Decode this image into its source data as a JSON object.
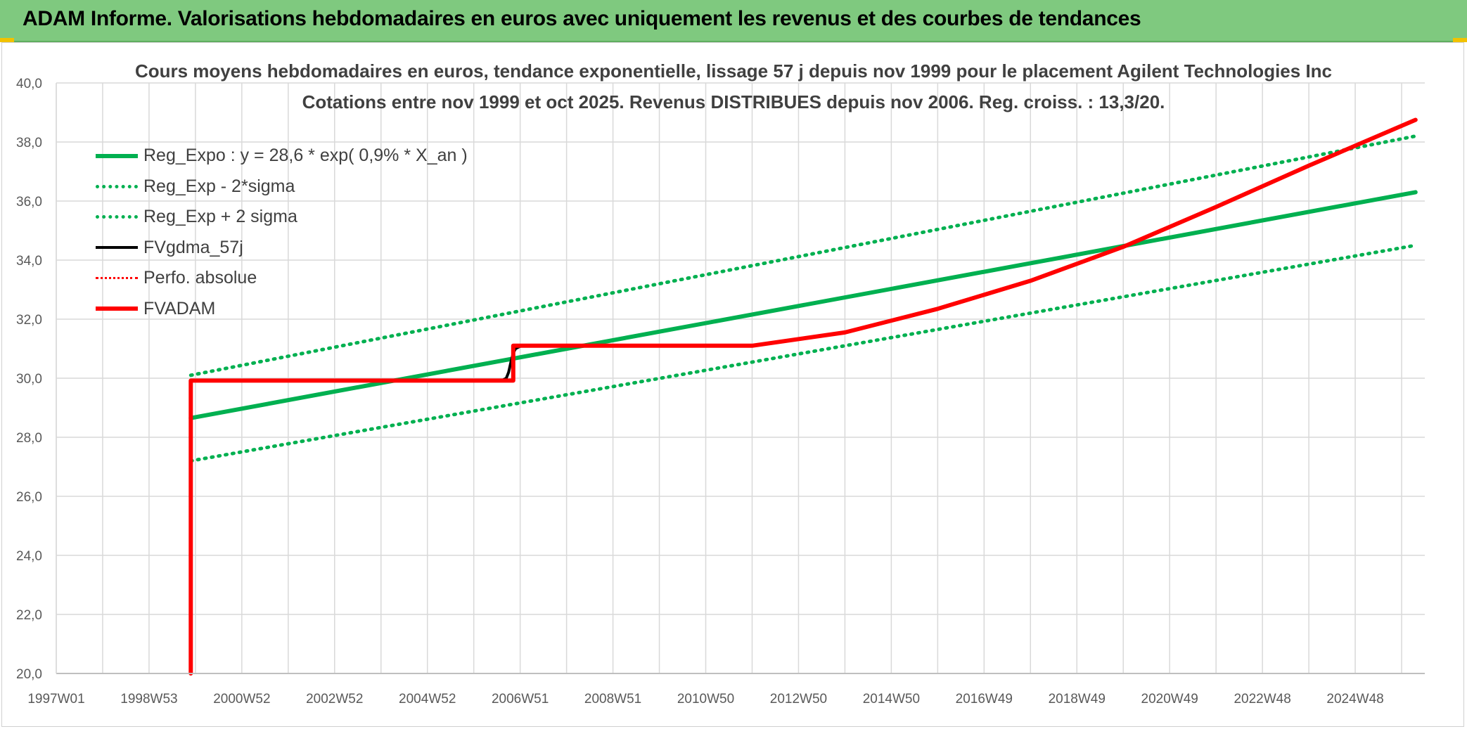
{
  "banner": {
    "title": "ADAM Informe. Valorisations hebdomadaires en euros avec uniquement les revenus et des courbes de tendances"
  },
  "chart_data": {
    "type": "line",
    "title_line1": "Cours moyens hebdomadaires en euros, tendance exponentielle, lissage 57 j depuis nov 1999 pour le placement Agilent Technologies Inc",
    "title_line2": "Cotations entre nov 1999 et oct 2025. Revenus DISTRIBUES depuis nov 2006. Reg. croiss. : 13,3/20.",
    "xlabel": "",
    "ylabel": "",
    "ylim": [
      20.0,
      40.0
    ],
    "xlim": [
      1997.0,
      2026.5
    ],
    "y_ticks": [
      "20,0",
      "22,0",
      "24,0",
      "26,0",
      "28,0",
      "30,0",
      "32,0",
      "34,0",
      "36,0",
      "38,0",
      "40,0"
    ],
    "y_tick_values": [
      20,
      22,
      24,
      26,
      28,
      30,
      32,
      34,
      36,
      38,
      40
    ],
    "x_ticks": [
      "1997W01",
      "1998W53",
      "2000W52",
      "2002W52",
      "2004W52",
      "2006W51",
      "2008W51",
      "2010W50",
      "2012W50",
      "2014W50",
      "2016W49",
      "2018W49",
      "2020W49",
      "2022W48",
      "2024W48"
    ],
    "x_tick_values": [
      1997.0,
      1999.0,
      2001.0,
      2003.0,
      2005.0,
      2007.0,
      2009.0,
      2011.0,
      2013.0,
      2015.0,
      2017.0,
      2019.0,
      2021.0,
      2023.0,
      2025.0
    ],
    "grid": true,
    "legend_position": "top-left",
    "series": [
      {
        "name": "Reg_Expo : y = 28,6 * exp( 0,9% *  X_an )",
        "color": "#00b050",
        "style": "solid",
        "x": [
          1999.9,
          2026.3
        ],
        "y": [
          28.65,
          36.3
        ]
      },
      {
        "name": "Reg_Exp - 2*sigma",
        "color": "#00b050",
        "style": "dotted",
        "x": [
          1999.9,
          2026.3
        ],
        "y": [
          27.2,
          34.5
        ]
      },
      {
        "name": "Reg_Exp + 2 sigma",
        "color": "#00b050",
        "style": "dotted",
        "x": [
          1999.9,
          2026.3
        ],
        "y": [
          30.1,
          38.2
        ]
      },
      {
        "name": "FVgdma_57j",
        "color": "#000000",
        "style": "solid",
        "x": [
          2006.6,
          2006.7,
          2006.75,
          2006.8,
          2006.85,
          2006.9,
          2007.0,
          2007.2
        ],
        "y": [
          29.92,
          30.0,
          30.2,
          30.55,
          30.85,
          31.0,
          31.08,
          31.1
        ]
      },
      {
        "name": "Perfo. absolue",
        "color": "#ff0000",
        "style": "dotted",
        "x": [],
        "y": []
      },
      {
        "name": "FVADAM",
        "color": "#ff0000",
        "style": "solid",
        "x": [
          1999.9,
          1999.9,
          2006.85,
          2006.85,
          2012.0,
          2014.0,
          2016.0,
          2018.0,
          2020.0,
          2022.0,
          2024.0,
          2026.3
        ],
        "y": [
          20.0,
          29.92,
          29.92,
          31.1,
          31.1,
          31.55,
          32.35,
          33.3,
          34.45,
          35.8,
          37.2,
          38.75
        ]
      }
    ]
  }
}
